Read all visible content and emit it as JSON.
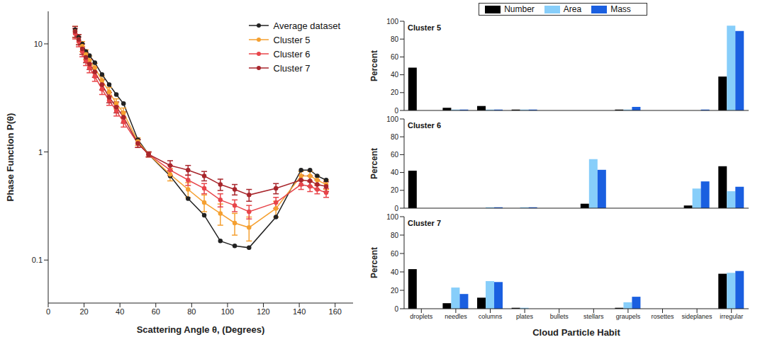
{
  "chart_data": [
    {
      "type": "line",
      "x_label": "Scattering Angle θ, (Degrees)",
      "y_label": "Phase Function P(θ)",
      "log": "y",
      "grid": false,
      "legend": "upper right",
      "xlim": [
        0,
        170
      ],
      "xticks": [
        0,
        20,
        40,
        60,
        80,
        100,
        120,
        140,
        160
      ],
      "ylim": [
        0.04,
        20
      ],
      "yticks": [
        0.1,
        1,
        10
      ],
      "x": [
        15,
        17,
        19,
        21,
        23,
        26,
        30,
        34,
        38,
        42,
        50,
        56,
        68,
        78,
        87,
        96,
        104,
        112,
        127,
        141,
        146,
        150,
        155
      ],
      "series": [
        {
          "name": "Average dataset",
          "color": "#222222",
          "marker": "circle",
          "line_style": "solid",
          "values": [
            13.5,
            11.5,
            10,
            8.5,
            7.8,
            6.7,
            5.2,
            4.2,
            3.4,
            2.8,
            1.3,
            0.95,
            0.6,
            0.37,
            0.26,
            0.15,
            0.135,
            0.13,
            0.25,
            0.68,
            0.68,
            0.6,
            0.55
          ]
        },
        {
          "name": "Cluster 5",
          "color": "#f5a030",
          "marker": "circle",
          "line_style": "solid",
          "values": [
            13,
            11,
            9.5,
            8,
            7,
            6,
            4.6,
            3.6,
            2.8,
            2.3,
            1.25,
            0.95,
            0.62,
            0.45,
            0.34,
            0.27,
            0.22,
            0.2,
            0.3,
            0.6,
            0.6,
            0.55,
            0.5
          ],
          "errors": [
            1.5,
            1.2,
            1,
            0.8,
            0.7,
            0.6,
            0.45,
            0.35,
            0.3,
            0.25,
            0.1,
            0.05,
            0.08,
            0.07,
            0.06,
            0.06,
            0.05,
            0.05,
            0.05,
            0.06,
            0.06,
            0.05,
            0.05
          ]
        },
        {
          "name": "Cluster 6",
          "color": "#e8454a",
          "marker": "circle",
          "line_style": "solid",
          "values": [
            12.5,
            10.5,
            8.5,
            7,
            6,
            5,
            3.8,
            3,
            2.4,
            1.9,
            1.2,
            0.95,
            0.68,
            0.55,
            0.46,
            0.36,
            0.32,
            0.28,
            0.34,
            0.5,
            0.48,
            0.45,
            0.42
          ],
          "errors": [
            1.4,
            1.1,
            0.9,
            0.7,
            0.6,
            0.5,
            0.4,
            0.3,
            0.25,
            0.2,
            0.1,
            0.05,
            0.07,
            0.06,
            0.05,
            0.05,
            0.04,
            0.04,
            0.04,
            0.05,
            0.05,
            0.04,
            0.04
          ]
        },
        {
          "name": "Cluster 7",
          "color": "#a8262c",
          "marker": "circle",
          "line_style": "solid",
          "values": [
            13,
            11,
            9,
            7.5,
            6.5,
            5.5,
            4.2,
            3.2,
            2.6,
            2.1,
            1.2,
            0.95,
            0.75,
            0.68,
            0.6,
            0.5,
            0.45,
            0.4,
            0.46,
            0.55,
            0.54,
            0.5,
            0.48
          ],
          "errors": [
            1.5,
            1.2,
            1,
            0.8,
            0.7,
            0.6,
            0.45,
            0.35,
            0.3,
            0.25,
            0.1,
            0.05,
            0.08,
            0.07,
            0.06,
            0.06,
            0.05,
            0.05,
            0.05,
            0.06,
            0.06,
            0.05,
            0.05
          ]
        }
      ]
    },
    {
      "type": "bar",
      "title": "Cluster 5",
      "y_label": "Percent",
      "grid": false,
      "legend": "top",
      "tick_labels": "y",
      "ylim": [
        0,
        100
      ],
      "yticks": [
        0,
        20,
        40,
        60,
        80,
        100
      ],
      "categories": [
        "droplets",
        "needles",
        "columns",
        "plates",
        "bullets",
        "stellars",
        "graupels",
        "rosettes",
        "sideplanes",
        "irregular"
      ],
      "series": [
        {
          "name": "Number",
          "color": "#000000",
          "values": [
            48,
            3,
            5,
            1,
            0,
            0,
            1,
            0,
            0,
            38
          ]
        },
        {
          "name": "Area",
          "color": "#87cefa",
          "values": [
            0,
            1,
            1,
            1,
            0,
            0,
            1,
            0,
            0,
            95
          ]
        },
        {
          "name": "Mass",
          "color": "#1a5fe0",
          "values": [
            0,
            1,
            1,
            1,
            0,
            0,
            4,
            0,
            1,
            89
          ]
        }
      ]
    },
    {
      "type": "bar",
      "title": "Cluster 6",
      "y_label": "Percent",
      "grid": false,
      "tick_labels": "y",
      "ylim": [
        0,
        100
      ],
      "yticks": [
        0,
        20,
        40,
        60,
        80,
        100
      ],
      "categories": [
        "droplets",
        "needles",
        "columns",
        "plates",
        "bullets",
        "stellars",
        "graupels",
        "rosettes",
        "sideplanes",
        "irregular"
      ],
      "series": [
        {
          "name": "Number",
          "color": "#000000",
          "values": [
            42,
            0,
            0,
            0,
            0,
            5,
            0,
            0,
            3,
            47
          ]
        },
        {
          "name": "Area",
          "color": "#87cefa",
          "values": [
            0,
            0,
            1,
            1,
            0,
            55,
            0,
            0,
            22,
            19
          ]
        },
        {
          "name": "Mass",
          "color": "#1a5fe0",
          "values": [
            0,
            0,
            1,
            1,
            0,
            43,
            0,
            0,
            30,
            24
          ]
        }
      ]
    },
    {
      "type": "bar",
      "title": "Cluster 7",
      "y_label": "Percent",
      "x_label": "Cloud Particle Habit",
      "grid": false,
      "ylim": [
        0,
        100
      ],
      "yticks": [
        0,
        20,
        40,
        60,
        80,
        100
      ],
      "categories": [
        "droplets",
        "needles",
        "columns",
        "plates",
        "bullets",
        "stellars",
        "graupels",
        "rosettes",
        "sideplanes",
        "irregular"
      ],
      "series": [
        {
          "name": "Number",
          "color": "#000000",
          "values": [
            43,
            6,
            12,
            1,
            0,
            0,
            1,
            0,
            0,
            38
          ]
        },
        {
          "name": "Area",
          "color": "#87cefa",
          "values": [
            0,
            23,
            30,
            1,
            0,
            0,
            7,
            0,
            0,
            39
          ]
        },
        {
          "name": "Mass",
          "color": "#1a5fe0",
          "values": [
            0,
            16,
            29,
            0,
            0,
            0,
            13,
            0,
            0,
            41
          ]
        }
      ]
    }
  ]
}
